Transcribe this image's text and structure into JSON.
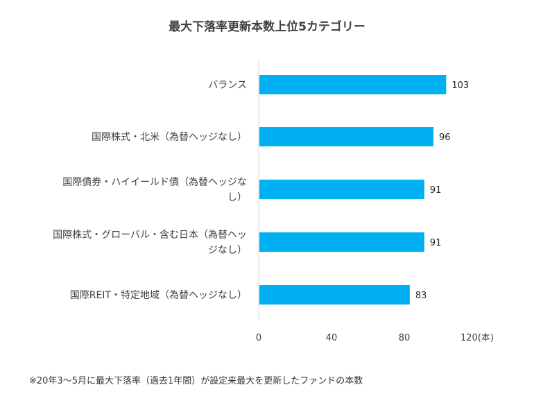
{
  "chart_data": {
    "type": "bar",
    "orientation": "horizontal",
    "title": "最大下落率更新本数上位5カテゴリー",
    "categories": [
      [
        "バランス"
      ],
      [
        "国際株式・北米（為替ヘッジなし）"
      ],
      [
        "国際債券・ハイイールド債（為替ヘッジな",
        "し）"
      ],
      [
        "国際株式・グローバル・含む日本（為替ヘッ",
        "ジなし）"
      ],
      [
        "国際REIT・特定地域（為替ヘッジなし）"
      ]
    ],
    "values": [
      103,
      96,
      91,
      91,
      83
    ],
    "value_labels": [
      "103",
      "96",
      "91",
      "91",
      "83"
    ],
    "xlim": [
      0,
      120
    ],
    "x_ticks": [
      "0",
      "40",
      "80",
      "120(本)"
    ],
    "x_tick_values": [
      0,
      40,
      80,
      120
    ],
    "grid": false,
    "bar_color": "#00B0F0",
    "axis_color": "#D9D9D9"
  },
  "footnote": "※20年3〜5月に最大下落率（過去1年間）が設定来最大を更新したファンドの本数"
}
